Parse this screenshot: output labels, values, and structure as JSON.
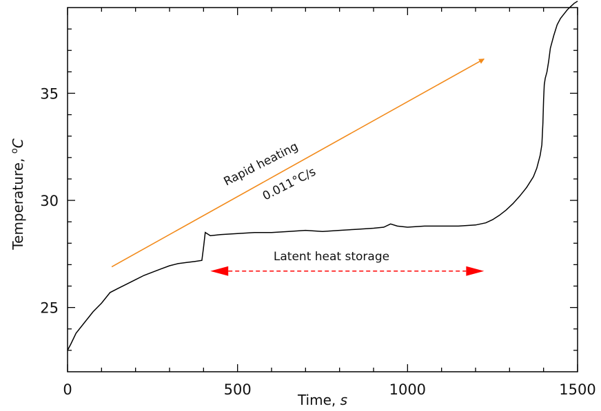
{
  "chart_data": {
    "type": "line",
    "xlabel_text": "Time, ",
    "xlabel_unit": "s",
    "ylabel_text": "Temperature, ",
    "ylabel_sup": "o",
    "ylabel_unit": "C",
    "xlim": [
      0,
      1500
    ],
    "ylim": [
      22,
      39
    ],
    "xticks": [
      0,
      500,
      1000,
      1500
    ],
    "yticks": [
      25,
      30,
      35
    ],
    "grid": false,
    "series": [
      {
        "color": "#000000",
        "x": [
          0,
          10,
          25,
          50,
          75,
          100,
          125,
          150,
          175,
          200,
          225,
          250,
          275,
          300,
          325,
          350,
          375,
          395,
          400,
          405,
          410,
          420,
          450,
          500,
          550,
          600,
          650,
          700,
          750,
          800,
          850,
          900,
          930,
          950,
          970,
          1000,
          1050,
          1100,
          1150,
          1200,
          1230,
          1250,
          1270,
          1290,
          1310,
          1330,
          1350,
          1370,
          1380,
          1390,
          1395,
          1398,
          1400,
          1402,
          1405,
          1410,
          1415,
          1420,
          1430,
          1440,
          1450,
          1460,
          1470,
          1480,
          1490,
          1500
        ],
        "y": [
          23.0,
          23.3,
          23.8,
          24.3,
          24.8,
          25.2,
          25.7,
          25.9,
          26.1,
          26.3,
          26.5,
          26.65,
          26.8,
          26.95,
          27.05,
          27.1,
          27.15,
          27.2,
          27.8,
          28.5,
          28.45,
          28.35,
          28.4,
          28.45,
          28.5,
          28.5,
          28.55,
          28.6,
          28.55,
          28.6,
          28.65,
          28.7,
          28.75,
          28.9,
          28.8,
          28.75,
          28.8,
          28.8,
          28.8,
          28.85,
          28.95,
          29.1,
          29.3,
          29.55,
          29.85,
          30.2,
          30.6,
          31.1,
          31.5,
          32.1,
          32.6,
          33.6,
          34.7,
          35.4,
          35.7,
          36.0,
          36.5,
          37.1,
          37.7,
          38.2,
          38.5,
          38.7,
          38.9,
          39.05,
          39.2,
          39.3
        ]
      }
    ],
    "annotations": {
      "heating_arrow": {
        "color": "#f28a1a",
        "x": [
          130,
          1225
        ],
        "y": [
          26.9,
          36.6
        ]
      },
      "heating_label": "Rapid heating",
      "heating_rate_value": "0.011",
      "heating_rate_deg": "°",
      "heating_rate_unit": "C/s",
      "latent_arrow": {
        "color": "#ff0000",
        "x": [
          420,
          1225
        ],
        "y": [
          26.7,
          26.7
        ]
      },
      "latent_label": "Latent heat storage"
    }
  }
}
